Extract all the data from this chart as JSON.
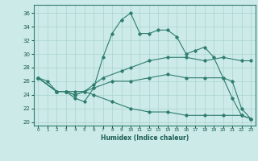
{
  "xlabel": "Humidex (Indice chaleur)",
  "bg_color": "#cceae7",
  "grid_color": "#aad4d0",
  "line_color": "#2e7d6e",
  "xlim": [
    -0.5,
    23.5
  ],
  "ylim": [
    19.5,
    37.2
  ],
  "xticks": [
    0,
    1,
    2,
    3,
    4,
    5,
    6,
    7,
    8,
    9,
    10,
    11,
    12,
    13,
    14,
    15,
    16,
    17,
    18,
    19,
    20,
    21,
    22,
    23
  ],
  "yticks": [
    20,
    22,
    24,
    26,
    28,
    30,
    32,
    34,
    36
  ],
  "series": [
    {
      "x": [
        0,
        1,
        2,
        3,
        4,
        5,
        6,
        7,
        8,
        9,
        10,
        11,
        12,
        13,
        14,
        15,
        16,
        17,
        18,
        19,
        20,
        21,
        22,
        23
      ],
      "y": [
        26.5,
        26,
        24.5,
        24.5,
        23.5,
        23,
        25,
        29.5,
        33,
        35,
        36,
        33,
        33,
        33.5,
        33.5,
        32.5,
        30,
        30.5,
        31,
        29.5,
        26.5,
        23.5,
        21,
        20.5
      ]
    },
    {
      "x": [
        0,
        2,
        3,
        4,
        5,
        6,
        7,
        9,
        10,
        12,
        14,
        16,
        18,
        20,
        22,
        23
      ],
      "y": [
        26.5,
        24.5,
        24.5,
        24.5,
        24.5,
        25.5,
        26.5,
        27.5,
        28,
        29,
        29.5,
        29.5,
        29,
        29.5,
        29,
        29
      ]
    },
    {
      "x": [
        0,
        2,
        3,
        4,
        5,
        6,
        8,
        10,
        12,
        14,
        16,
        18,
        20,
        21,
        22,
        23
      ],
      "y": [
        26.5,
        24.5,
        24.5,
        24,
        24.5,
        25,
        26,
        26,
        26.5,
        27,
        26.5,
        26.5,
        26.5,
        26,
        22,
        20.5
      ]
    },
    {
      "x": [
        0,
        2,
        3,
        4,
        5,
        6,
        8,
        10,
        12,
        14,
        16,
        18,
        20,
        22,
        23
      ],
      "y": [
        26.5,
        24.5,
        24.5,
        24,
        24.5,
        24,
        23,
        22,
        21.5,
        21.5,
        21,
        21,
        21,
        21,
        20.5
      ]
    }
  ]
}
